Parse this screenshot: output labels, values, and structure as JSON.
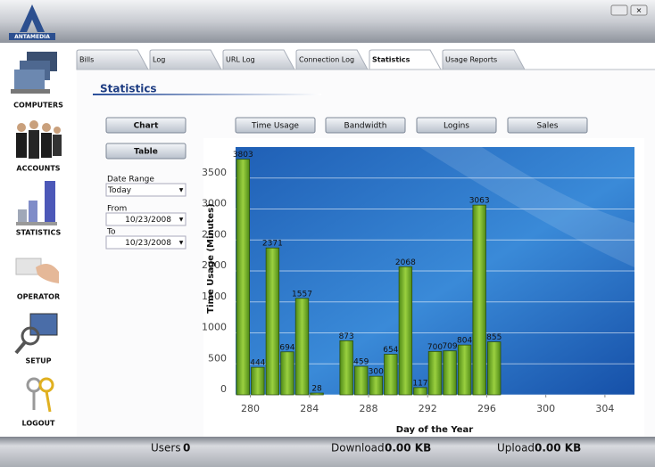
{
  "app": {
    "logo": "ANTAMEDIA"
  },
  "sidebar": [
    "COMPUTERS",
    "ACCOUNTS",
    "STATISTICS",
    "OPERATOR",
    "SETUP",
    "LOGOUT"
  ],
  "tabs": [
    "Bills",
    "Log",
    "URL Log",
    "Connection Log",
    "Statistics",
    "Usage Reports"
  ],
  "page_title": "Statistics",
  "view_buttons": [
    "Chart",
    "Table"
  ],
  "report_buttons": [
    "Time Usage",
    "Bandwidth",
    "Logins",
    "Sales"
  ],
  "form": {
    "date_range_label": "Date Range",
    "date_range": "Today",
    "from_label": "From",
    "from": "10/23/2008",
    "to_label": "To",
    "to": "10/23/2008"
  },
  "status": {
    "users_label": "Users",
    "users": 0,
    "download_label": "Download",
    "download": "0.00 KB",
    "upload_label": "Upload",
    "upload": "0.00 KB"
  },
  "chart_data": {
    "type": "bar",
    "x_label": "Day of the Year",
    "y_label": "Time Usage (Minutes)",
    "x": [
      279,
      280,
      281,
      282,
      283,
      284,
      286,
      287,
      288,
      289,
      290,
      291,
      292,
      293,
      294,
      295,
      296
    ],
    "values": [
      3803,
      444,
      2371,
      694,
      1557,
      28,
      873,
      459,
      300,
      654,
      2068,
      117,
      700,
      709,
      804,
      3063,
      855
    ],
    "color": "#78b02c",
    "xlim": [
      279,
      306
    ],
    "xticks": [
      280,
      284,
      288,
      292,
      296,
      300,
      304
    ],
    "ylim": [
      0,
      4000
    ],
    "yticks": [
      0,
      500,
      1000,
      1500,
      2000,
      2500,
      3000,
      3500
    ],
    "grid": true
  }
}
